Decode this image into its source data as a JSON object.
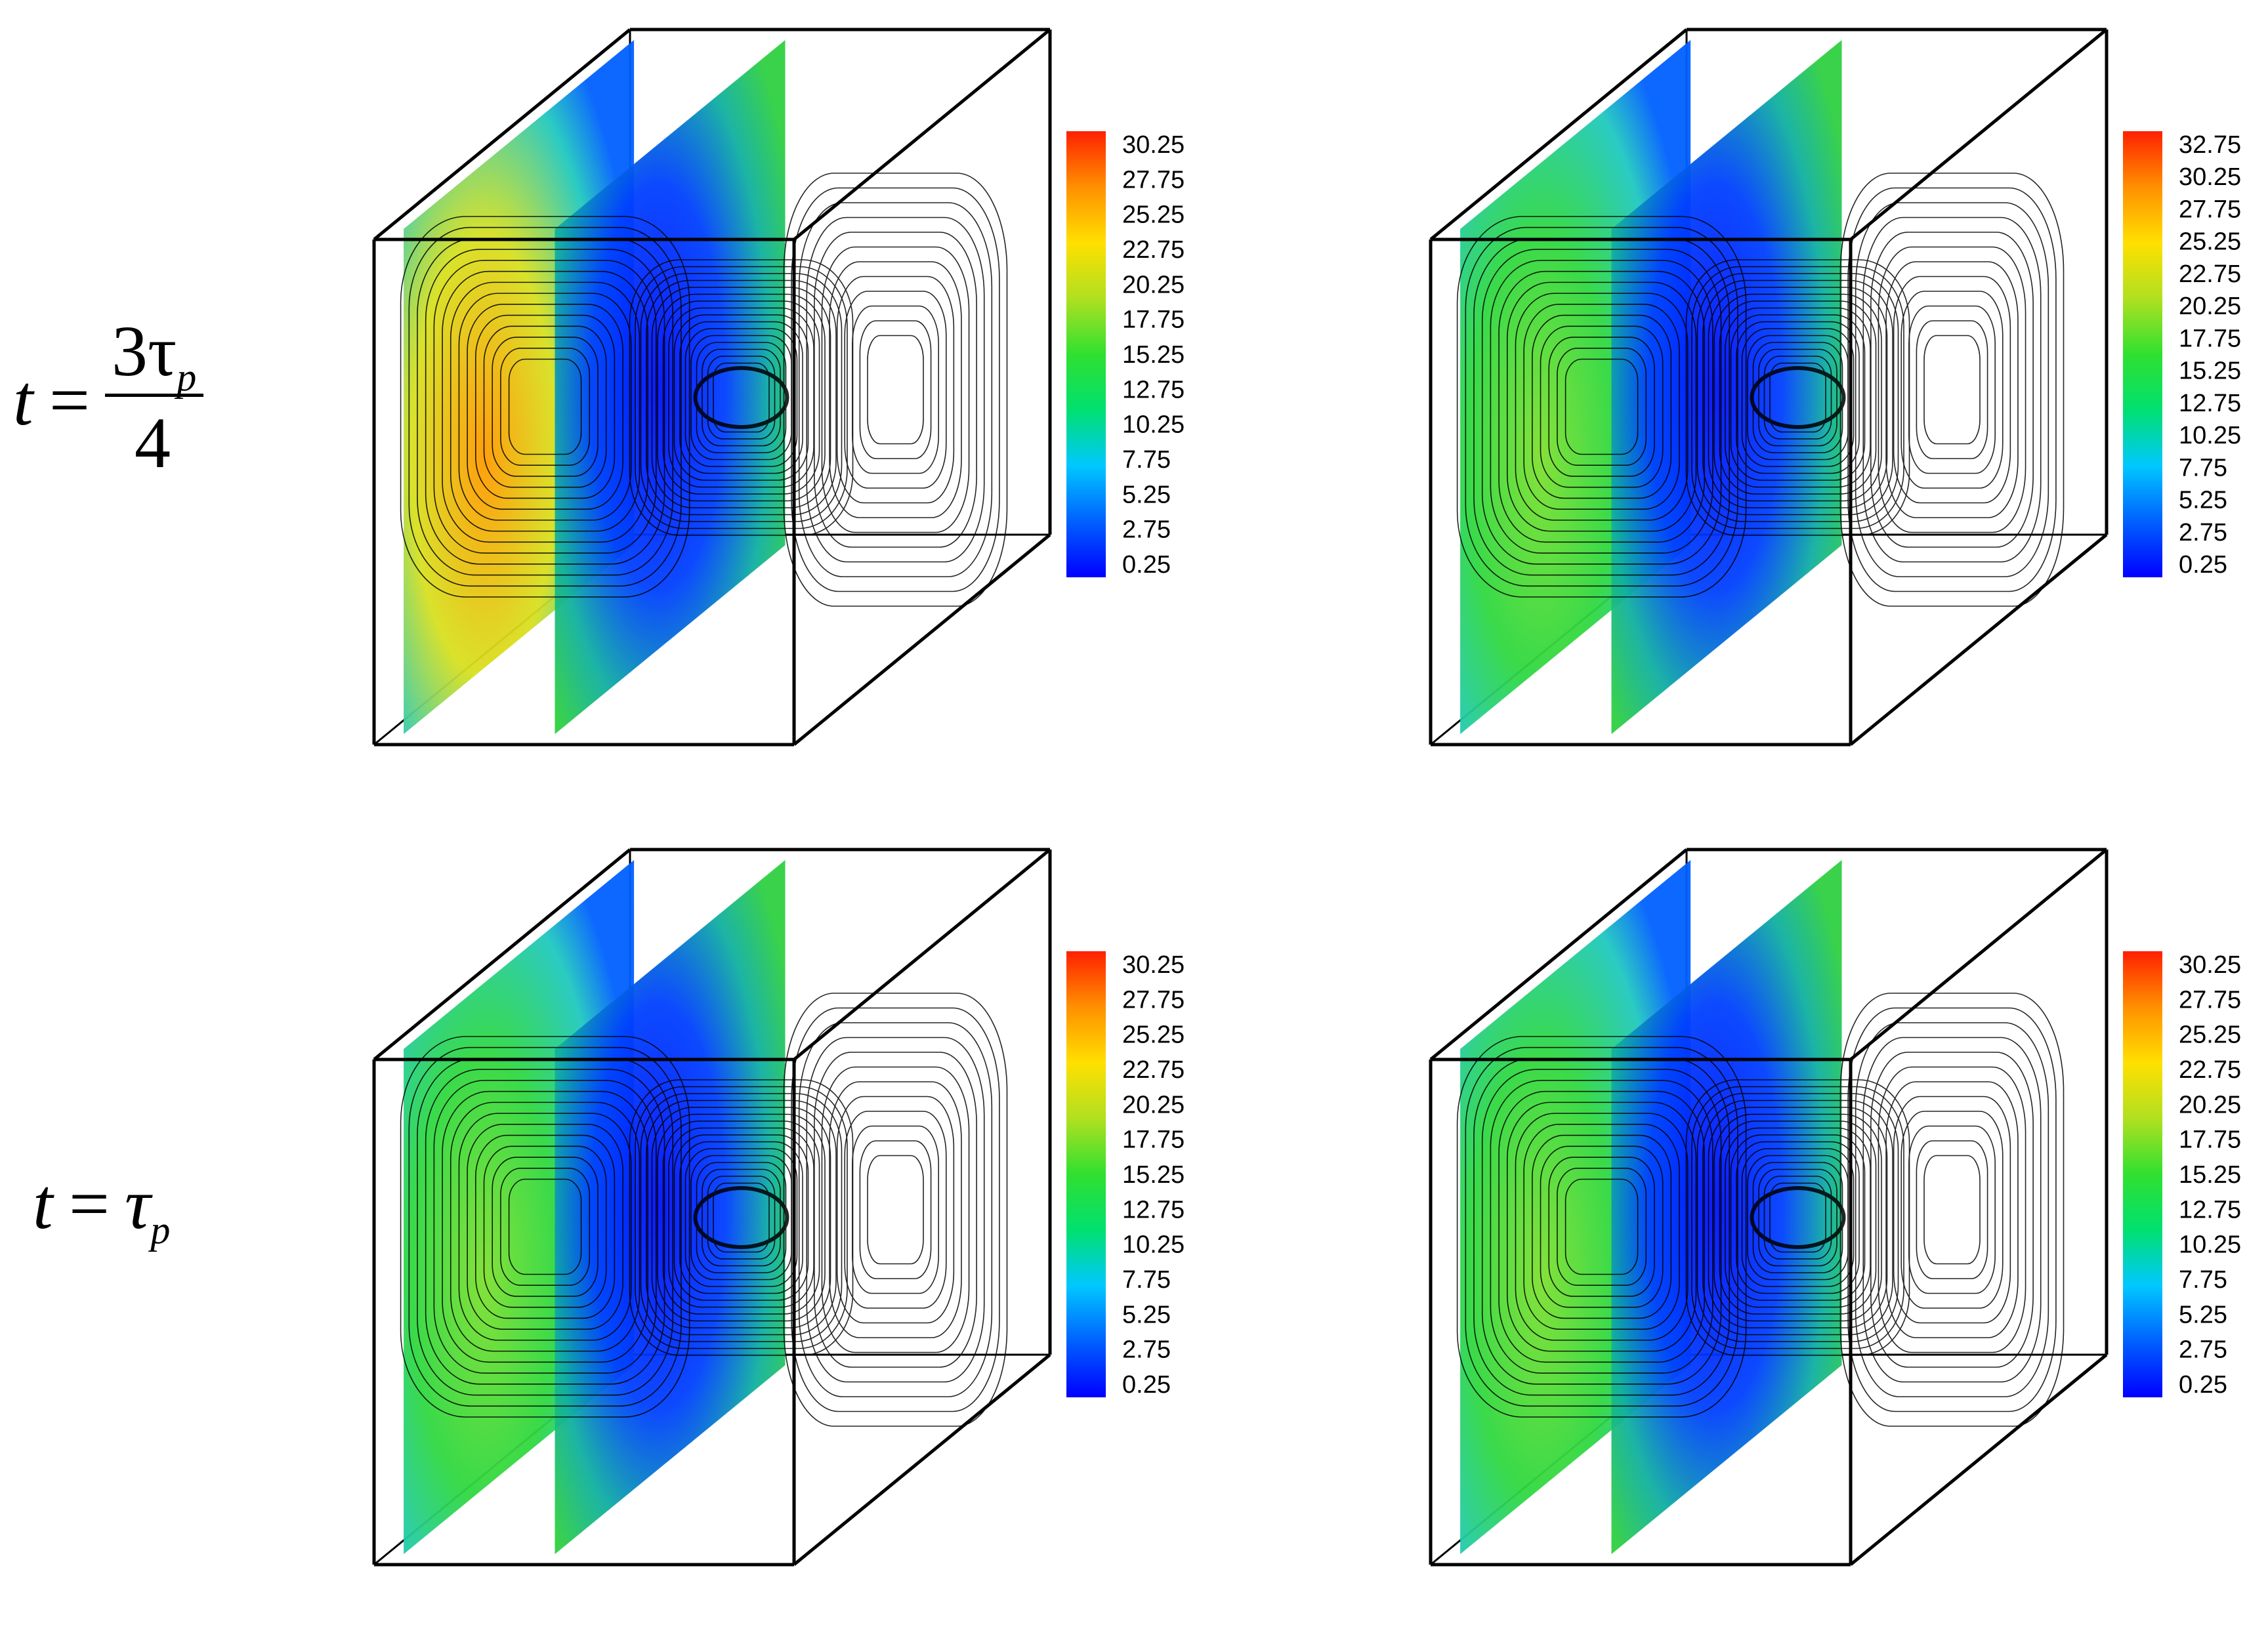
{
  "row_labels": [
    {
      "lhs": "t",
      "eq": "=",
      "numerator": "3τ",
      "numerator_sub": "p",
      "denominator": "4"
    },
    {
      "lhs": "t",
      "eq": "=",
      "rhs": "τ",
      "rhs_sub": "p"
    }
  ],
  "panels": [
    {
      "colorbar_ticks": [
        "30.25",
        "27.75",
        "25.25",
        "22.75",
        "20.25",
        "17.75",
        "15.25",
        "12.75",
        "10.25",
        "7.75",
        "5.25",
        "2.75",
        "0.25"
      ]
    },
    {
      "colorbar_ticks": [
        "32.75",
        "30.25",
        "27.75",
        "25.25",
        "22.75",
        "20.25",
        "17.75",
        "15.25",
        "12.75",
        "10.25",
        "7.75",
        "5.25",
        "2.75",
        "0.25"
      ]
    },
    {
      "colorbar_ticks": [
        "30.25",
        "27.75",
        "25.25",
        "22.75",
        "20.25",
        "17.75",
        "15.25",
        "12.75",
        "10.25",
        "7.75",
        "5.25",
        "2.75",
        "0.25"
      ]
    },
    {
      "colorbar_ticks": [
        "30.25",
        "27.75",
        "25.25",
        "22.75",
        "20.25",
        "17.75",
        "15.25",
        "12.75",
        "10.25",
        "7.75",
        "5.25",
        "2.75",
        "0.25"
      ]
    }
  ],
  "colors": {
    "colormap": [
      "#0000ff",
      "#0060ff",
      "#00c8ff",
      "#00e070",
      "#30e030",
      "#b0e020",
      "#ffe000",
      "#ff9000",
      "#ff2000"
    ]
  }
}
